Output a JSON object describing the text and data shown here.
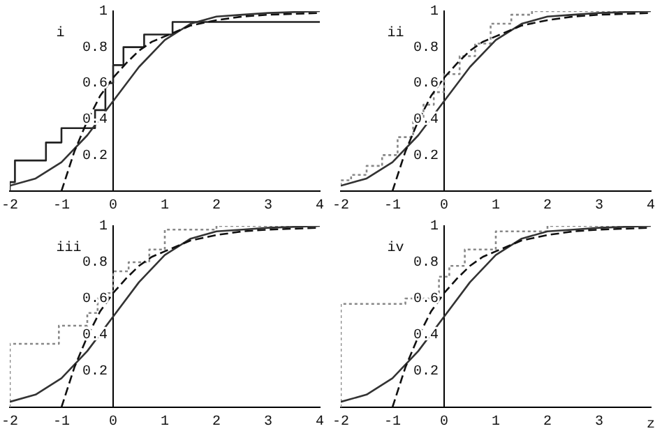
{
  "chart_data": [
    {
      "type": "line",
      "title": "i",
      "xlim": [
        -2,
        4
      ],
      "xticks": [
        -2,
        -1,
        0,
        1,
        2,
        3,
        4
      ],
      "ylim": [
        0,
        1
      ],
      "yticks": [
        0.2,
        0.4,
        0.6,
        0.8,
        1
      ],
      "grid": false,
      "legend": false,
      "marker": "none",
      "series": [
        {
          "color": "#111111",
          "line_style": "dashed",
          "x": [
            -1,
            -0.75,
            -0.5,
            -0.25,
            0,
            0.25,
            0.5,
            0.75,
            1,
            1.5,
            2,
            2.5,
            3,
            4
          ],
          "values": [
            0,
            0.22,
            0.39,
            0.53,
            0.63,
            0.71,
            0.78,
            0.83,
            0.86,
            0.92,
            0.95,
            0.97,
            0.98,
            0.99
          ]
        },
        {
          "color": "#333333",
          "line_style": "solid",
          "x": [
            -2,
            -1.5,
            -1,
            -0.5,
            0,
            0.5,
            1,
            1.5,
            2,
            2.5,
            3,
            4
          ],
          "values": [
            0.03,
            0.07,
            0.16,
            0.31,
            0.5,
            0.69,
            0.84,
            0.93,
            0.97,
            0.98,
            0.99,
            1
          ]
        },
        {
          "type": "step",
          "color": "#222222",
          "line_style": "solid",
          "x": [
            -2,
            -1.9,
            -1.3,
            -1,
            -0.35,
            -0.15,
            0,
            0.2,
            0.6,
            1.15,
            1.55,
            4
          ],
          "values": [
            0,
            0.05,
            0.17,
            0.27,
            0.35,
            0.45,
            0.6,
            0.7,
            0.8,
            0.87,
            0.94,
            0.94
          ]
        }
      ]
    },
    {
      "type": "line",
      "title": "ii",
      "xlim": [
        -2,
        4
      ],
      "xticks": [
        -2,
        -1,
        0,
        1,
        2,
        3,
        4
      ],
      "ylim": [
        0,
        1
      ],
      "yticks": [
        0.2,
        0.4,
        0.6,
        0.8,
        1
      ],
      "grid": false,
      "legend": false,
      "marker": "none",
      "series": [
        {
          "color": "#111111",
          "line_style": "dashed",
          "x": [
            -1,
            -0.75,
            -0.5,
            -0.25,
            0,
            0.25,
            0.5,
            0.75,
            1,
            1.5,
            2,
            2.5,
            3,
            4
          ],
          "values": [
            0,
            0.22,
            0.39,
            0.53,
            0.63,
            0.71,
            0.78,
            0.83,
            0.86,
            0.92,
            0.95,
            0.97,
            0.98,
            0.99
          ]
        },
        {
          "color": "#333333",
          "line_style": "solid",
          "x": [
            -2,
            -1.5,
            -1,
            -0.5,
            0,
            0.5,
            1,
            1.5,
            2,
            2.5,
            3,
            4
          ],
          "values": [
            0.03,
            0.07,
            0.16,
            0.31,
            0.5,
            0.69,
            0.84,
            0.93,
            0.97,
            0.98,
            0.99,
            1
          ]
        },
        {
          "type": "step",
          "color": "#888888",
          "line_style": "dotted",
          "x": [
            -2,
            -1.8,
            -1.5,
            -1.2,
            -0.9,
            -0.6,
            -0.4,
            -0.2,
            0,
            0.3,
            0.6,
            0.9,
            1.3,
            1.7,
            2.2,
            4
          ],
          "values": [
            0.03,
            0.06,
            0.09,
            0.14,
            0.2,
            0.3,
            0.4,
            0.48,
            0.55,
            0.65,
            0.75,
            0.82,
            0.93,
            0.98,
            1,
            1
          ]
        }
      ]
    },
    {
      "type": "line",
      "title": "iii",
      "xlim": [
        -2,
        4
      ],
      "xticks": [
        -2,
        -1,
        0,
        1,
        2,
        3,
        4
      ],
      "ylim": [
        0,
        1
      ],
      "yticks": [
        0.2,
        0.4,
        0.6,
        0.8,
        1
      ],
      "grid": false,
      "legend": false,
      "marker": "none",
      "series": [
        {
          "color": "#111111",
          "line_style": "dashed",
          "x": [
            -1,
            -0.75,
            -0.5,
            -0.25,
            0,
            0.25,
            0.5,
            0.75,
            1,
            1.5,
            2,
            2.5,
            3,
            4
          ],
          "values": [
            0,
            0.22,
            0.39,
            0.53,
            0.63,
            0.71,
            0.78,
            0.83,
            0.86,
            0.92,
            0.95,
            0.97,
            0.98,
            0.99
          ]
        },
        {
          "color": "#333333",
          "line_style": "solid",
          "x": [
            -2,
            -1.5,
            -1,
            -0.5,
            0,
            0.5,
            1,
            1.5,
            2,
            2.5,
            3,
            4
          ],
          "values": [
            0.03,
            0.07,
            0.16,
            0.31,
            0.5,
            0.69,
            0.84,
            0.93,
            0.97,
            0.98,
            0.99,
            1
          ]
        },
        {
          "type": "step",
          "color": "#888888",
          "line_style": "dotted",
          "x": [
            -2,
            -1.05,
            -0.5,
            -0.3,
            -0.1,
            0,
            0.3,
            0.7,
            1,
            2,
            4
          ],
          "values": [
            0,
            0.35,
            0.45,
            0.52,
            0.6,
            0.63,
            0.75,
            0.8,
            0.87,
            0.98,
            1
          ]
        }
      ]
    },
    {
      "type": "line",
      "title": "iv",
      "xlabel": "z",
      "xlim": [
        -2,
        4
      ],
      "xticks": [
        -2,
        -1,
        0,
        1,
        2,
        3
      ],
      "ylim": [
        0,
        1
      ],
      "yticks": [
        0.2,
        0.4,
        0.6,
        0.8,
        1
      ],
      "grid": false,
      "legend": false,
      "marker": "none",
      "series": [
        {
          "color": "#111111",
          "line_style": "dashed",
          "x": [
            -1,
            -0.75,
            -0.5,
            -0.25,
            0,
            0.25,
            0.5,
            0.75,
            1,
            1.5,
            2,
            2.5,
            3,
            4
          ],
          "values": [
            0,
            0.22,
            0.39,
            0.53,
            0.63,
            0.71,
            0.78,
            0.83,
            0.86,
            0.92,
            0.95,
            0.97,
            0.98,
            0.99
          ]
        },
        {
          "color": "#333333",
          "line_style": "solid",
          "x": [
            -2,
            -1.5,
            -1,
            -0.5,
            0,
            0.5,
            1,
            1.5,
            2,
            2.5,
            3,
            4
          ],
          "values": [
            0.03,
            0.07,
            0.16,
            0.31,
            0.5,
            0.69,
            0.84,
            0.93,
            0.97,
            0.98,
            0.99,
            1
          ]
        },
        {
          "type": "step",
          "color": "#888888",
          "line_style": "dotted",
          "x": [
            -2,
            -0.75,
            -0.1,
            0.1,
            0.4,
            1,
            2,
            4
          ],
          "values": [
            0,
            0.57,
            0.6,
            0.72,
            0.78,
            0.87,
            0.97,
            1
          ]
        }
      ]
    }
  ]
}
